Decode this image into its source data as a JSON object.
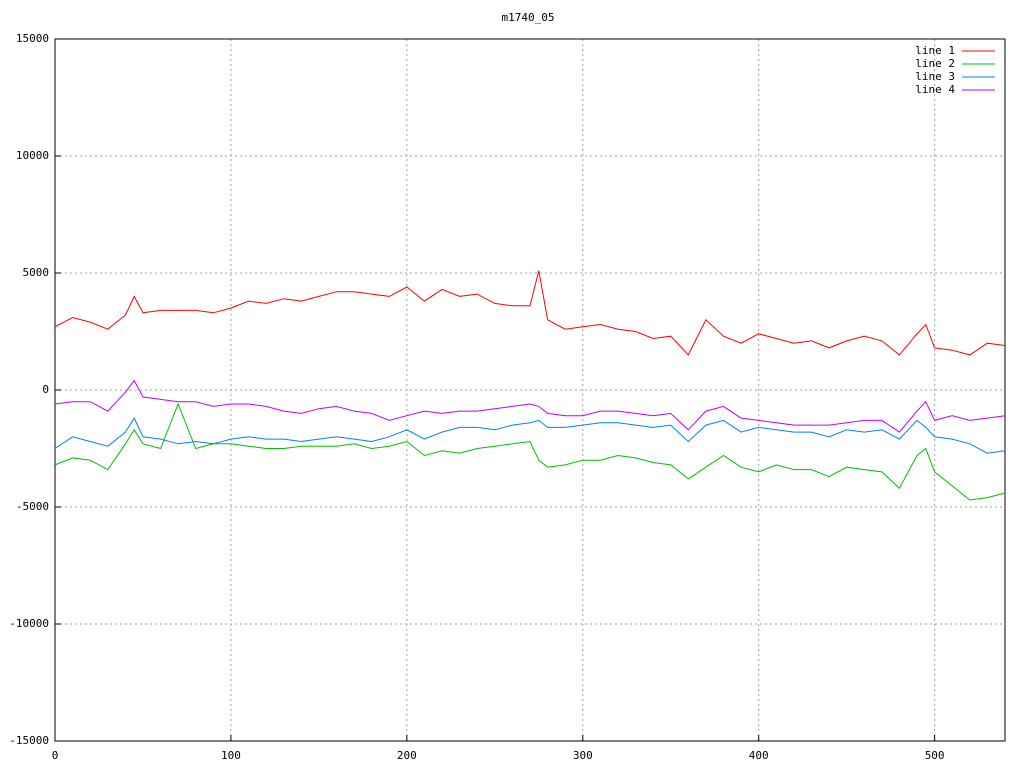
{
  "chart_data": {
    "type": "line",
    "title": "m1740_05",
    "x": [
      0,
      10,
      20,
      30,
      40,
      45,
      50,
      60,
      70,
      80,
      90,
      100,
      110,
      120,
      130,
      140,
      150,
      160,
      170,
      180,
      190,
      200,
      210,
      220,
      230,
      240,
      250,
      260,
      270,
      275,
      280,
      290,
      300,
      310,
      320,
      330,
      340,
      350,
      360,
      370,
      380,
      390,
      400,
      410,
      420,
      430,
      440,
      450,
      460,
      470,
      480,
      490,
      495,
      500,
      510,
      520,
      530,
      540
    ],
    "series": [
      {
        "name": "line 1",
        "color": "#ff0000",
        "values": [
          2700,
          3100,
          2900,
          2600,
          3200,
          4000,
          3300,
          3400,
          3400,
          3400,
          3300,
          3500,
          3800,
          3700,
          3900,
          3800,
          4000,
          4200,
          4200,
          4100,
          4000,
          4400,
          3800,
          4300,
          4000,
          4100,
          3700,
          3600,
          3600,
          5100,
          3000,
          2600,
          2700,
          2800,
          2600,
          2500,
          2200,
          2300,
          1500,
          3000,
          2300,
          2000,
          2400,
          2200,
          2000,
          2100,
          1800,
          2100,
          2300,
          2100,
          1500,
          2400,
          2800,
          1800,
          1700,
          1500,
          2000,
          1900
        ]
      },
      {
        "name": "line 2",
        "color": "#00c000",
        "values": [
          -3200,
          -2900,
          -3000,
          -3400,
          -2300,
          -1700,
          -2300,
          -2500,
          -600,
          -2500,
          -2300,
          -2300,
          -2400,
          -2500,
          -2500,
          -2400,
          -2400,
          -2400,
          -2300,
          -2500,
          -2400,
          -2200,
          -2800,
          -2600,
          -2700,
          -2500,
          -2400,
          -2300,
          -2200,
          -3000,
          -3300,
          -3200,
          -3000,
          -3000,
          -2800,
          -2900,
          -3100,
          -3200,
          -3800,
          -3300,
          -2800,
          -3300,
          -3500,
          -3200,
          -3400,
          -3400,
          -3700,
          -3300,
          -3400,
          -3500,
          -4200,
          -2800,
          -2500,
          -3500,
          -4100,
          -4700,
          -4600,
          -4400
        ]
      },
      {
        "name": "line 3",
        "color": "#0080ff",
        "values": [
          -2500,
          -2000,
          -2200,
          -2400,
          -1800,
          -1200,
          -2000,
          -2100,
          -2300,
          -2200,
          -2300,
          -2100,
          -2000,
          -2100,
          -2100,
          -2200,
          -2100,
          -2000,
          -2100,
          -2200,
          -2000,
          -1700,
          -2100,
          -1800,
          -1600,
          -1600,
          -1700,
          -1500,
          -1400,
          -1300,
          -1600,
          -1600,
          -1500,
          -1400,
          -1400,
          -1500,
          -1600,
          -1500,
          -2200,
          -1500,
          -1300,
          -1800,
          -1600,
          -1700,
          -1800,
          -1800,
          -2000,
          -1700,
          -1800,
          -1700,
          -2100,
          -1300,
          -1600,
          -2000,
          -2100,
          -2300,
          -2700,
          -2600
        ]
      },
      {
        "name": "line 4",
        "color": "#c000ff",
        "values": [
          -600,
          -500,
          -500,
          -900,
          -100,
          400,
          -300,
          -400,
          -500,
          -500,
          -700,
          -600,
          -600,
          -700,
          -900,
          -1000,
          -800,
          -700,
          -900,
          -1000,
          -1300,
          -1100,
          -900,
          -1000,
          -900,
          -900,
          -800,
          -700,
          -600,
          -700,
          -1000,
          -1100,
          -1100,
          -900,
          -900,
          -1000,
          -1100,
          -1000,
          -1700,
          -900,
          -700,
          -1200,
          -1300,
          -1400,
          -1500,
          -1500,
          -1500,
          -1400,
          -1300,
          -1300,
          -1800,
          -900,
          -500,
          -1300,
          -1100,
          -1300,
          -1200,
          -1100
        ]
      }
    ],
    "xlim": [
      0,
      540
    ],
    "xticks": [
      0,
      100,
      200,
      300,
      400,
      500
    ],
    "ylim": [
      -15000,
      15000
    ],
    "yticks": [
      -15000,
      -10000,
      -5000,
      0,
      5000,
      10000,
      15000
    ],
    "grid": true,
    "legend": "top-right"
  }
}
